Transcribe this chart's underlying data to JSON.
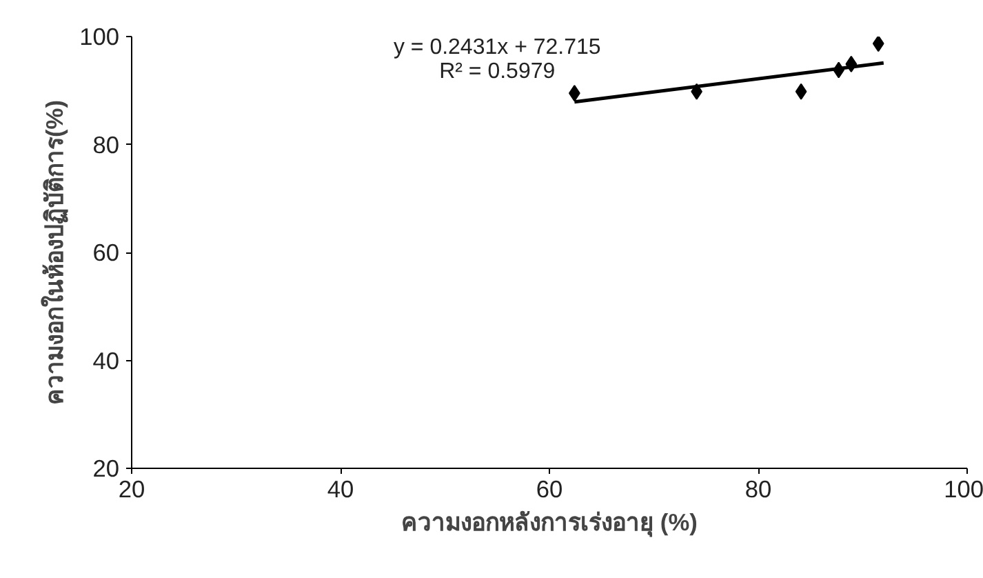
{
  "chart_data": {
    "type": "scatter",
    "xlabel": "ความงอกหลังการเร่งอายุ (%)",
    "ylabel": "ความงอกในห้องปฏิบัติการ(%)",
    "annotations": [
      "y = 0.2431x + 72.715",
      "R² = 0.5979"
    ],
    "series": [
      {
        "color": "#000000",
        "marker": "diamond",
        "x": [
          62.4,
          74.1,
          84.1,
          87.7,
          88.9,
          91.5
        ],
        "values": [
          89.5,
          89.8,
          89.8,
          93.8,
          94.9,
          98.7
        ]
      },
      {
        "type": "line",
        "color": "#000000",
        "marker": "none",
        "line_style": "solid",
        "x": [
          62.4,
          92
        ],
        "values": [
          87.9,
          95.1
        ]
      }
    ],
    "xlim": [
      20,
      100
    ],
    "ylim": [
      20,
      100
    ],
    "xticks": [
      20,
      40,
      60,
      80,
      100
    ],
    "yticks": [
      20,
      40,
      60,
      80,
      100
    ],
    "grid": false
  }
}
